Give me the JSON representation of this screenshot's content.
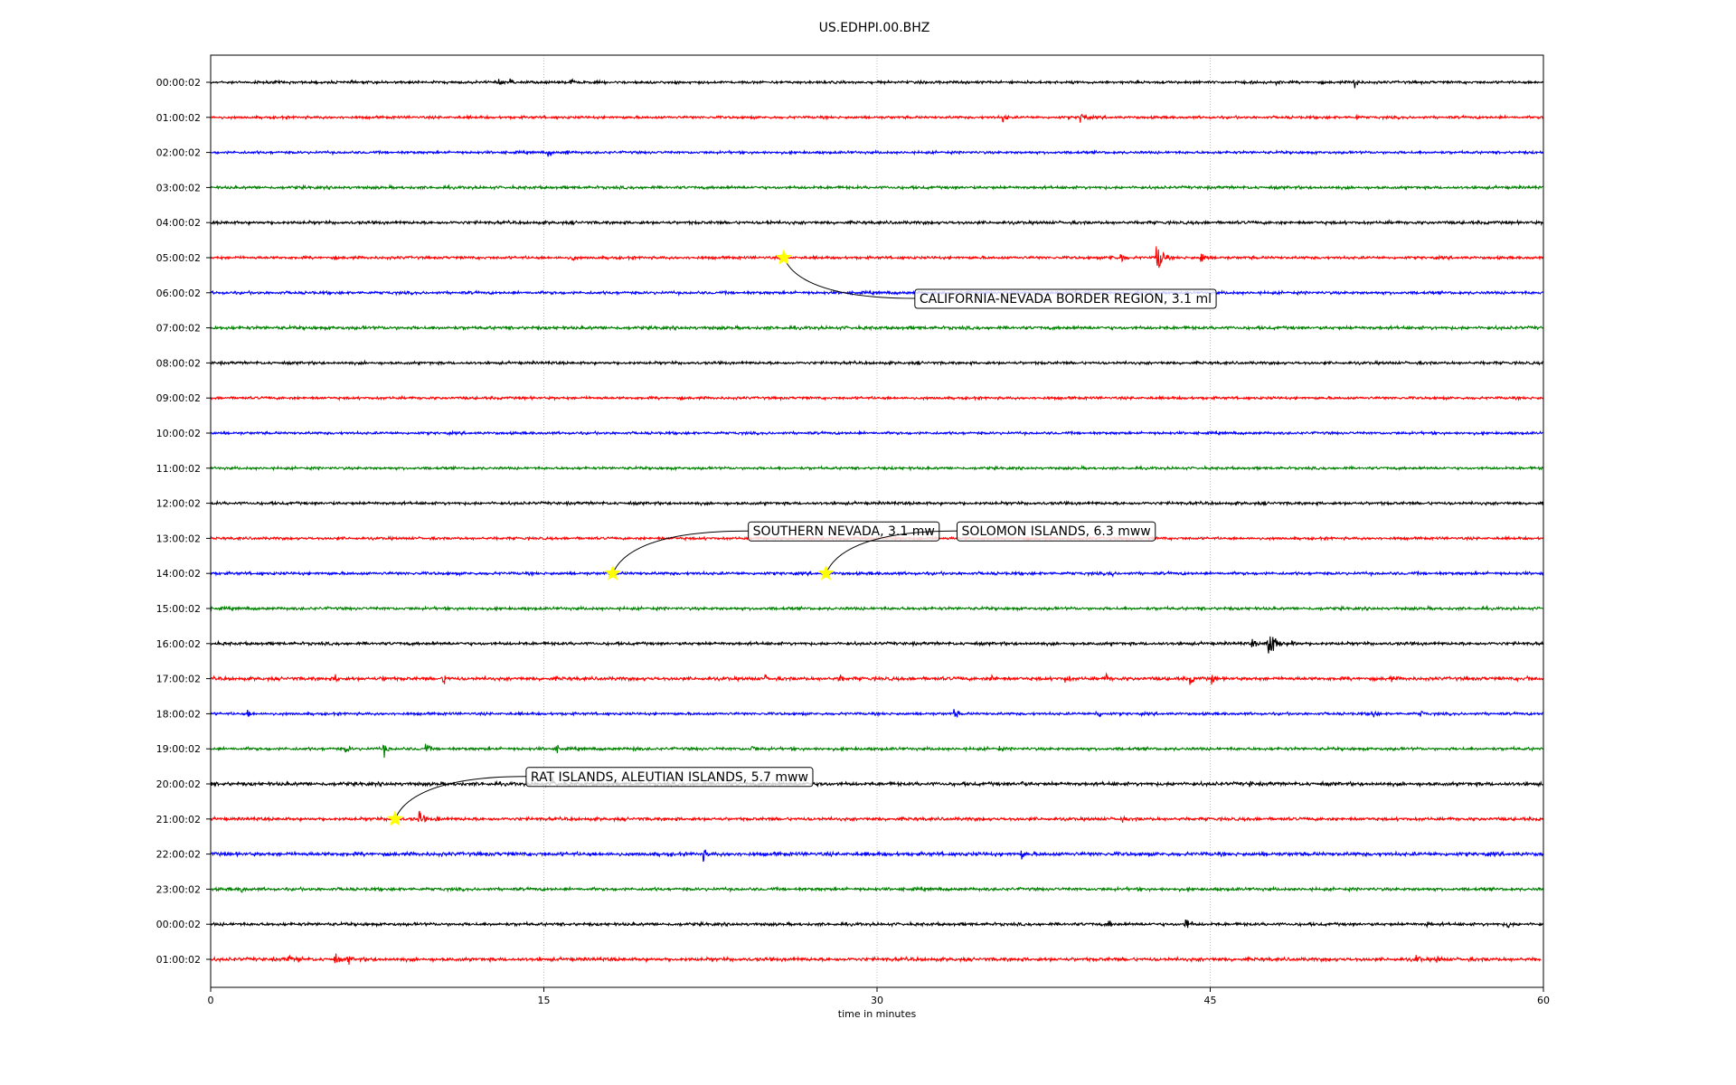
{
  "chart_data": {
    "type": "line",
    "title": "US.EDHPI.00.BHZ",
    "xlabel": "time in minutes",
    "ylabel": "",
    "xlim": [
      0,
      60
    ],
    "x_ticks": [
      0,
      15,
      30,
      45,
      60
    ],
    "grid": "vertical dotted lines at 15-minute intervals",
    "trace_color_cycle": [
      "#000000",
      "#ff0000",
      "#0000ff",
      "#008000"
    ],
    "traces": [
      {
        "label": "00:00:02",
        "color": "#000000",
        "noise": 2.0,
        "bursts": [
          {
            "t": 13.0,
            "amp": 7
          },
          {
            "t": 13.5,
            "amp": 6
          },
          {
            "t": 16.2,
            "amp": 7
          },
          {
            "t": 48.0,
            "amp": 5
          },
          {
            "t": 51.5,
            "amp": 11
          }
        ]
      },
      {
        "label": "01:00:02",
        "color": "#ff0000",
        "noise": 2.0,
        "bursts": [
          {
            "t": 5.0,
            "amp": 3
          },
          {
            "t": 35.7,
            "amp": 8
          },
          {
            "t": 39.2,
            "amp": 12
          },
          {
            "t": 51.6,
            "amp": 5
          }
        ]
      },
      {
        "label": "02:00:02",
        "color": "#0000ff",
        "noise": 2.0,
        "bursts": [
          {
            "t": 15.2,
            "amp": 7
          },
          {
            "t": 16.0,
            "amp": 6
          }
        ]
      },
      {
        "label": "03:00:02",
        "color": "#008000",
        "noise": 2.2,
        "bursts": []
      },
      {
        "label": "04:00:02",
        "color": "#000000",
        "noise": 2.3,
        "bursts": [
          {
            "t": 25.1,
            "amp": 5
          }
        ]
      },
      {
        "label": "05:00:02",
        "color": "#ff0000",
        "noise": 2.1,
        "bursts": [
          {
            "t": 16.3,
            "amp": 7
          },
          {
            "t": 40.5,
            "amp": 8
          },
          {
            "t": 41.0,
            "amp": 10
          },
          {
            "t": 42.6,
            "amp": 34
          },
          {
            "t": 44.6,
            "amp": 13
          }
        ]
      },
      {
        "label": "06:00:02",
        "color": "#0000ff",
        "noise": 2.2,
        "bursts": []
      },
      {
        "label": "07:00:02",
        "color": "#008000",
        "noise": 2.4,
        "bursts": []
      },
      {
        "label": "08:00:02",
        "color": "#000000",
        "noise": 2.1,
        "bursts": []
      },
      {
        "label": "09:00:02",
        "color": "#ff0000",
        "noise": 2.0,
        "bursts": []
      },
      {
        "label": "10:00:02",
        "color": "#0000ff",
        "noise": 2.0,
        "bursts": []
      },
      {
        "label": "11:00:02",
        "color": "#008000",
        "noise": 2.0,
        "bursts": []
      },
      {
        "label": "12:00:02",
        "color": "#000000",
        "noise": 2.2,
        "bursts": []
      },
      {
        "label": "13:00:02",
        "color": "#ff0000",
        "noise": 2.0,
        "bursts": []
      },
      {
        "label": "14:00:02",
        "color": "#0000ff",
        "noise": 2.2,
        "bursts": [
          {
            "t": 40.5,
            "amp": 7
          }
        ]
      },
      {
        "label": "15:00:02",
        "color": "#008000",
        "noise": 2.2,
        "bursts": [
          {
            "t": 24.5,
            "amp": 4
          }
        ]
      },
      {
        "label": "16:00:02",
        "color": "#000000",
        "noise": 2.3,
        "bursts": [
          {
            "t": 46.9,
            "amp": 9
          },
          {
            "t": 47.6,
            "amp": 40
          },
          {
            "t": 48.0,
            "amp": 12
          },
          {
            "t": 48.7,
            "amp": 8
          }
        ]
      },
      {
        "label": "17:00:02",
        "color": "#ff0000",
        "noise": 2.6,
        "bursts": [
          {
            "t": 5.6,
            "amp": 9
          },
          {
            "t": 7.8,
            "amp": 8
          },
          {
            "t": 10.5,
            "amp": 10
          },
          {
            "t": 25.0,
            "amp": 6
          },
          {
            "t": 28.3,
            "amp": 8
          },
          {
            "t": 35.2,
            "amp": 9
          },
          {
            "t": 38.5,
            "amp": 9
          },
          {
            "t": 40.3,
            "amp": 11
          },
          {
            "t": 44.1,
            "amp": 11
          },
          {
            "t": 45.1,
            "amp": 9
          },
          {
            "t": 53.1,
            "amp": 7
          },
          {
            "t": 59.3,
            "amp": 6
          }
        ]
      },
      {
        "label": "18:00:02",
        "color": "#0000ff",
        "noise": 2.0,
        "bursts": [
          {
            "t": 1.7,
            "amp": 8
          },
          {
            "t": 33.5,
            "amp": 9
          },
          {
            "t": 39.9,
            "amp": 9
          },
          {
            "t": 52.3,
            "amp": 9
          },
          {
            "t": 54.5,
            "amp": 6
          }
        ]
      },
      {
        "label": "19:00:02",
        "color": "#008000",
        "noise": 2.2,
        "bursts": [
          {
            "t": 6.1,
            "amp": 8
          },
          {
            "t": 7.8,
            "amp": 11
          },
          {
            "t": 9.7,
            "amp": 9
          },
          {
            "t": 15.6,
            "amp": 7
          },
          {
            "t": 19.1,
            "amp": 6
          },
          {
            "t": 24.4,
            "amp": 7
          },
          {
            "t": 35.5,
            "amp": 6
          }
        ]
      },
      {
        "label": "20:00:02",
        "color": "#000000",
        "noise": 2.7,
        "bursts": [
          {
            "t": 15.4,
            "amp": 11
          },
          {
            "t": 27.5,
            "amp": 6
          },
          {
            "t": 36.5,
            "amp": 7
          },
          {
            "t": 43.5,
            "amp": 6
          },
          {
            "t": 46.8,
            "amp": 6
          }
        ]
      },
      {
        "label": "21:00:02",
        "color": "#ff0000",
        "noise": 2.4,
        "bursts": [
          {
            "t": 9.4,
            "amp": 14
          },
          {
            "t": 10.2,
            "amp": 6
          },
          {
            "t": 41.0,
            "amp": 7
          }
        ]
      },
      {
        "label": "22:00:02",
        "color": "#0000ff",
        "noise": 2.8,
        "bursts": [
          {
            "t": 22.2,
            "amp": 10
          },
          {
            "t": 36.5,
            "amp": 10
          }
        ]
      },
      {
        "label": "23:00:02",
        "color": "#008000",
        "noise": 2.3,
        "bursts": [
          {
            "t": 1.4,
            "amp": 7
          }
        ]
      },
      {
        "label": "00:00:02",
        "color": "#000000",
        "noise": 2.3,
        "bursts": [
          {
            "t": 40.4,
            "amp": 9
          },
          {
            "t": 43.9,
            "amp": 14
          },
          {
            "t": 54.8,
            "amp": 6
          },
          {
            "t": 58.4,
            "amp": 8
          }
        ]
      },
      {
        "label": "01:00:02",
        "color": "#ff0000",
        "noise": 2.6,
        "bursts": [
          {
            "t": 3.5,
            "amp": 9
          },
          {
            "t": 4.0,
            "amp": 7
          },
          {
            "t": 5.6,
            "amp": 10
          },
          {
            "t": 6.2,
            "amp": 9
          },
          {
            "t": 54.3,
            "amp": 9
          },
          {
            "t": 55.2,
            "amp": 9
          }
        ],
        "end": 59.9
      }
    ],
    "events": [
      {
        "trace": 5,
        "t": 25.8,
        "label": "CALIFORNIA-NEVADA BORDER REGION, 3.1 ml"
      },
      {
        "trace": 14,
        "t": 18.1,
        "label": "SOUTHERN NEVADA, 3.1 mw"
      },
      {
        "trace": 14,
        "t": 27.7,
        "label": "SOLOMON ISLANDS, 6.3 mww"
      },
      {
        "trace": 21,
        "t": 8.3,
        "label": "RAT ISLANDS, ALEUTIAN ISLANDS, 5.7 mww"
      }
    ],
    "marker_color": "#ffff00"
  }
}
